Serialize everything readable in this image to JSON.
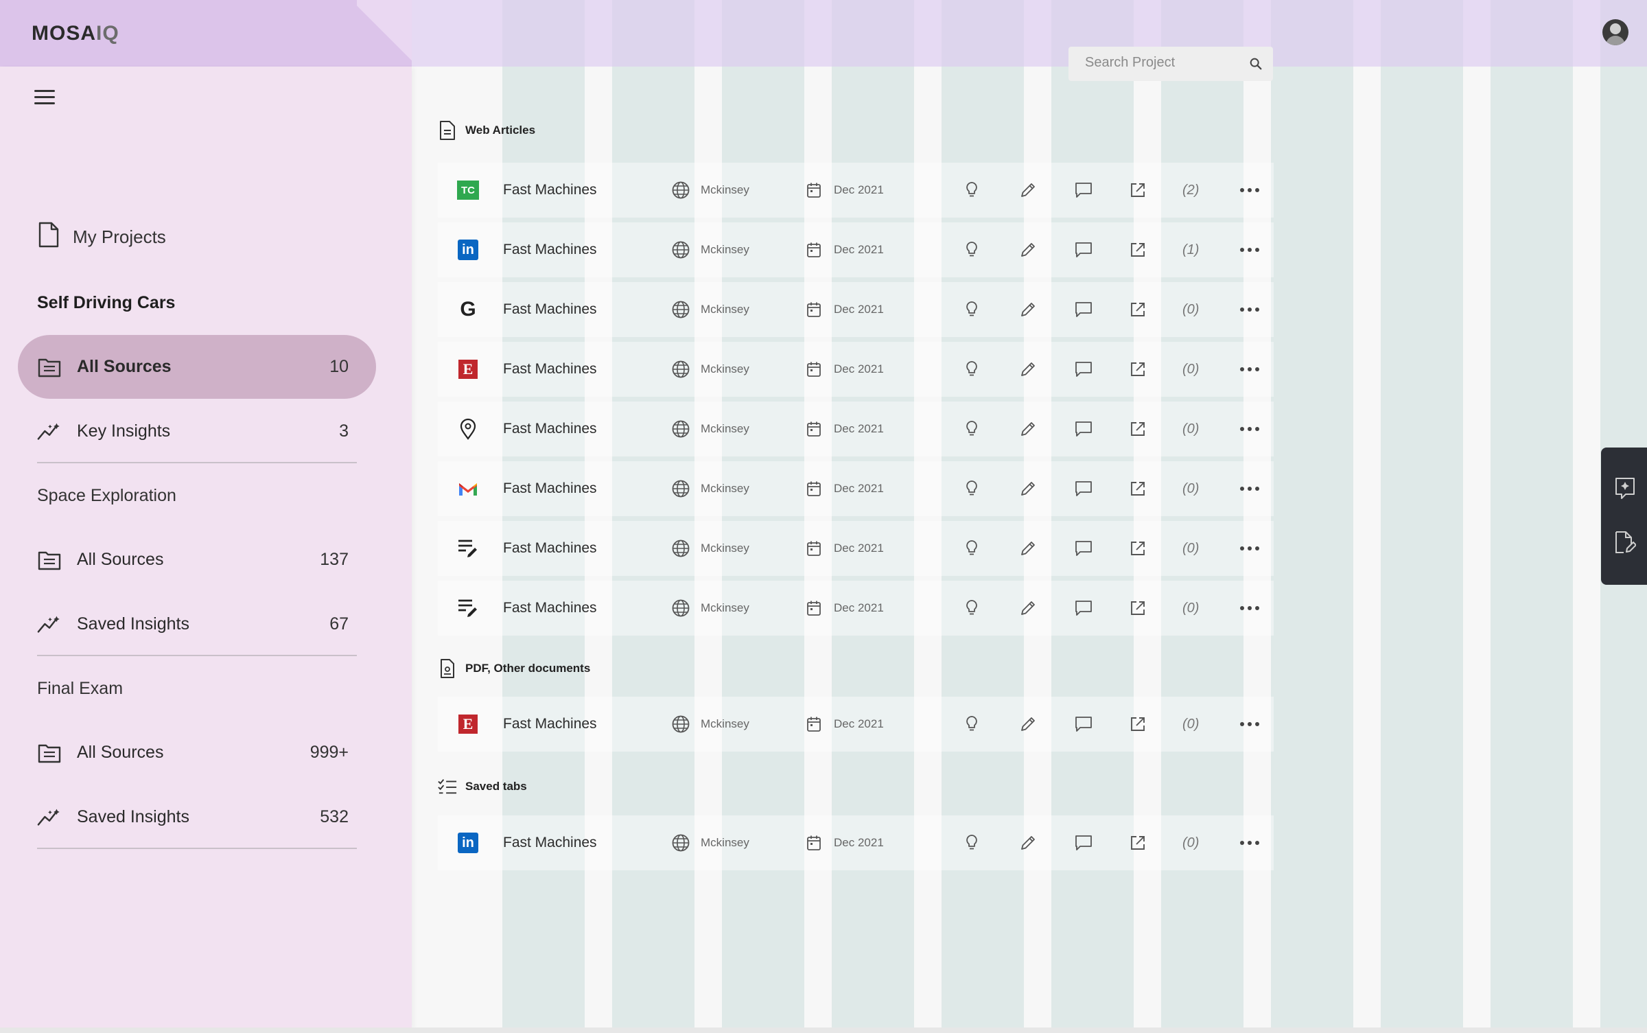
{
  "app": {
    "logo_main": "MOSA",
    "logo_suffix": "IQ"
  },
  "search": {
    "placeholder": "Search Project"
  },
  "sidebar": {
    "my_projects": "My Projects",
    "projects": [
      {
        "name": "Self Driving Cars",
        "items": [
          {
            "label": "All Sources",
            "count": "10",
            "active": true
          },
          {
            "label": "Key Insights",
            "count": "3"
          }
        ]
      },
      {
        "name": "Space Exploration",
        "items": [
          {
            "label": "All Sources",
            "count": "137"
          },
          {
            "label": "Saved Insights",
            "count": "67"
          }
        ]
      },
      {
        "name": "Final Exam",
        "items": [
          {
            "label": "All Sources",
            "count": "999+"
          },
          {
            "label": "Saved Insights",
            "count": "532"
          }
        ]
      }
    ]
  },
  "sections": {
    "web_articles": {
      "title": "Web Articles",
      "rows": [
        {
          "source_icon": "techcrunch-logo",
          "title": "Fast Machines",
          "publisher": "Mckinsey",
          "date": "Dec 2021",
          "count": "(2)"
        },
        {
          "source_icon": "linkedin-logo",
          "title": "Fast Machines",
          "publisher": "Mckinsey",
          "date": "Dec 2021",
          "count": "(1)"
        },
        {
          "source_icon": "google-logo",
          "title": "Fast Machines",
          "publisher": "Mckinsey",
          "date": "Dec 2021",
          "count": "(0)"
        },
        {
          "source_icon": "economist-logo",
          "title": "Fast Machines",
          "publisher": "Mckinsey",
          "date": "Dec 2021",
          "count": "(0)"
        },
        {
          "source_icon": "location-pin-icon",
          "title": "Fast Machines",
          "publisher": "Mckinsey",
          "date": "Dec 2021",
          "count": "(0)"
        },
        {
          "source_icon": "gmail-logo",
          "title": "Fast Machines",
          "publisher": "Mckinsey",
          "date": "Dec 2021",
          "count": "(0)"
        },
        {
          "source_icon": "note-edit-icon",
          "title": "Fast Machines",
          "publisher": "Mckinsey",
          "date": "Dec 2021",
          "count": "(0)"
        },
        {
          "source_icon": "note-edit-icon",
          "title": "Fast Machines",
          "publisher": "Mckinsey",
          "date": "Dec 2021",
          "count": "(0)"
        }
      ]
    },
    "pdf_documents": {
      "title": "PDF, Other documents",
      "rows": [
        {
          "source_icon": "economist-logo",
          "title": "Fast Machines",
          "publisher": "Mckinsey",
          "date": "Dec 2021",
          "count": "(0)"
        }
      ]
    },
    "saved_tabs": {
      "title": "Saved tabs",
      "rows": [
        {
          "source_icon": "linkedin-logo",
          "title": "Fast Machines",
          "publisher": "Mckinsey",
          "date": "Dec 2021",
          "count": "(0)"
        }
      ]
    }
  },
  "source_logo_text": {
    "techcrunch": "TC",
    "linkedin": "in",
    "google": "G",
    "economist": "E"
  },
  "colors": {
    "sidebar_bg": "#f2e2f1",
    "active_item_bg": "#cfb1c8",
    "topbar_bg": "#dcc4ea",
    "grid_column": "#d3e3e1"
  }
}
